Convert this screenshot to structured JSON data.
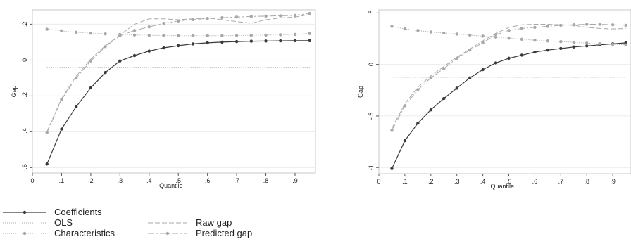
{
  "colors": {
    "coefficients": "#3a3a3a",
    "ols": "#a8a8a8",
    "characteristics": "#a8a8a8",
    "raw_gap": "#a8a8a8",
    "predicted_gap": "#a8a8a8",
    "plot_border": "#c8c8c8",
    "grid": "#ececec"
  },
  "legend": {
    "coefficients": "Coefficients",
    "ols": "OLS",
    "characteristics": "Characteristics",
    "raw_gap": "Raw gap",
    "predicted_gap": "Predicted gap"
  },
  "chart_data": [
    {
      "type": "line",
      "xlabel": "Quantile",
      "ylabel": "Gap",
      "xlim": [
        0,
        0.97
      ],
      "ylim": [
        -0.63,
        0.28
      ],
      "xticks": [
        0,
        0.1,
        0.2,
        0.3,
        0.4,
        0.5,
        0.6,
        0.7,
        0.8,
        0.9
      ],
      "xtick_labels": [
        "0",
        ".1",
        ".2",
        ".3",
        ".4",
        ".5",
        ".6",
        ".7",
        ".8",
        ".9"
      ],
      "yticks": [
        0.2,
        0,
        -0.2,
        -0.4,
        -0.6
      ],
      "ytick_labels": [
        ".2",
        "0",
        "-.2",
        "-.4",
        "-.6"
      ],
      "grid": true,
      "x": [
        0.05,
        0.1,
        0.15,
        0.2,
        0.25,
        0.3,
        0.35,
        0.4,
        0.45,
        0.5,
        0.55,
        0.6,
        0.65,
        0.7,
        0.75,
        0.8,
        0.85,
        0.9,
        0.95
      ],
      "series": [
        {
          "name": "Coefficients",
          "values": [
            -0.58,
            -0.385,
            -0.26,
            -0.155,
            -0.07,
            -0.005,
            0.025,
            0.05,
            0.068,
            0.08,
            0.09,
            0.096,
            0.1,
            0.103,
            0.105,
            0.106,
            0.107,
            0.108,
            0.108
          ]
        },
        {
          "name": "OLS",
          "values": [
            -0.04,
            -0.04,
            -0.04,
            -0.04,
            -0.04,
            -0.04,
            -0.04,
            -0.04,
            -0.04,
            -0.04,
            -0.04,
            -0.04,
            -0.04,
            -0.04,
            -0.04,
            -0.04,
            -0.04,
            -0.04,
            -0.04
          ]
        },
        {
          "name": "Characteristics",
          "values": [
            0.172,
            0.163,
            0.155,
            0.15,
            0.146,
            0.143,
            0.14,
            0.138,
            0.137,
            0.136,
            0.136,
            0.136,
            0.136,
            0.137,
            0.138,
            0.139,
            0.141,
            0.143,
            0.148
          ]
        },
        {
          "name": "Raw gap",
          "values": [
            -0.4,
            -0.215,
            -0.09,
            0.005,
            0.08,
            0.14,
            0.2,
            0.23,
            0.23,
            0.225,
            0.23,
            0.235,
            0.225,
            0.215,
            0.205,
            0.225,
            0.235,
            0.24,
            0.255
          ]
        },
        {
          "name": "Predicted gap",
          "values": [
            -0.405,
            -0.22,
            -0.1,
            -0.005,
            0.075,
            0.135,
            0.165,
            0.185,
            0.205,
            0.218,
            0.226,
            0.232,
            0.236,
            0.24,
            0.243,
            0.245,
            0.247,
            0.249,
            0.26
          ]
        }
      ]
    },
    {
      "type": "line",
      "xlabel": "Quantile",
      "ylabel": "Gap",
      "xlim": [
        0,
        0.97
      ],
      "ylim": [
        -1.06,
        0.53
      ],
      "xticks": [
        0,
        0.1,
        0.2,
        0.3,
        0.4,
        0.5,
        0.6,
        0.7,
        0.8,
        0.9
      ],
      "xtick_labels": [
        "0",
        ".1",
        ".2",
        ".3",
        ".4",
        ".5",
        ".6",
        ".7",
        ".8",
        ".9"
      ],
      "yticks": [
        0.5,
        0,
        -0.5,
        -1
      ],
      "ytick_labels": [
        ".5",
        "0",
        "-.5",
        "-1"
      ],
      "grid": true,
      "x": [
        0.05,
        0.1,
        0.15,
        0.2,
        0.25,
        0.3,
        0.35,
        0.4,
        0.45,
        0.5,
        0.55,
        0.6,
        0.65,
        0.7,
        0.75,
        0.8,
        0.85,
        0.9,
        0.95
      ],
      "series": [
        {
          "name": "Coefficients",
          "values": [
            -1.01,
            -0.74,
            -0.57,
            -0.44,
            -0.33,
            -0.23,
            -0.13,
            -0.05,
            0.015,
            0.06,
            0.09,
            0.12,
            0.14,
            0.155,
            0.17,
            0.18,
            0.19,
            0.2,
            0.21
          ]
        },
        {
          "name": "OLS",
          "values": [
            -0.125,
            -0.125,
            -0.125,
            -0.125,
            -0.125,
            -0.125,
            -0.125,
            -0.125,
            -0.125,
            -0.125,
            -0.125,
            -0.125,
            -0.125,
            -0.125,
            -0.125,
            -0.125,
            -0.125,
            -0.125,
            -0.125
          ]
        },
        {
          "name": "Characteristics",
          "values": [
            0.37,
            0.345,
            0.33,
            0.315,
            0.305,
            0.295,
            0.285,
            0.275,
            0.265,
            0.255,
            0.245,
            0.235,
            0.228,
            0.222,
            0.215,
            0.208,
            0.202,
            0.195,
            0.19
          ]
        },
        {
          "name": "Raw gap",
          "values": [
            -0.62,
            -0.38,
            -0.22,
            -0.11,
            -0.02,
            0.07,
            0.15,
            0.23,
            0.3,
            0.36,
            0.385,
            0.39,
            0.39,
            0.385,
            0.38,
            0.36,
            0.35,
            0.345,
            0.35
          ]
        },
        {
          "name": "Predicted gap",
          "values": [
            -0.64,
            -0.4,
            -0.245,
            -0.13,
            -0.04,
            0.06,
            0.14,
            0.21,
            0.29,
            0.33,
            0.35,
            0.36,
            0.37,
            0.38,
            0.385,
            0.39,
            0.39,
            0.385,
            0.38
          ]
        }
      ]
    }
  ]
}
